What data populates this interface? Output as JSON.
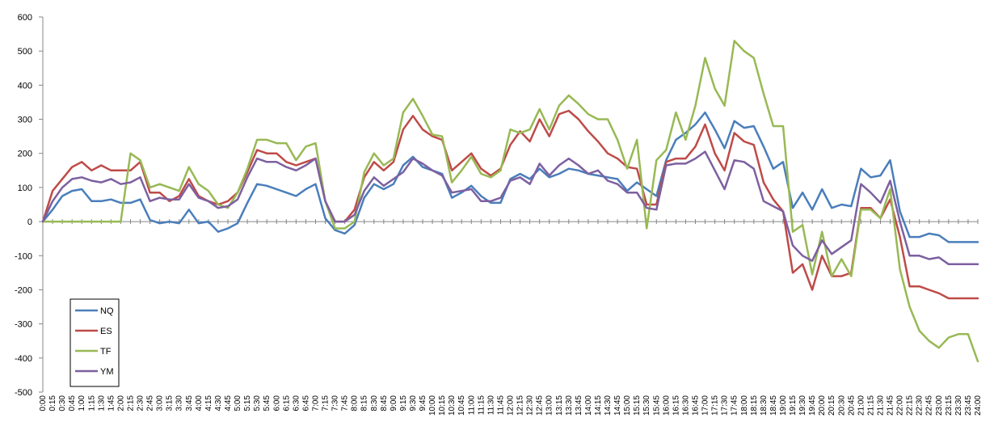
{
  "chart_data": {
    "type": "line",
    "title": "",
    "xlabel": "",
    "ylabel": "",
    "ylim": [
      -500,
      600
    ],
    "yticks": [
      -500,
      -400,
      -300,
      -200,
      -100,
      0,
      100,
      200,
      300,
      400,
      500,
      600
    ],
    "grid": false,
    "legend_position": "bottom-left",
    "x": [
      "0:00",
      "0:15",
      "0:30",
      "0:45",
      "1:00",
      "1:15",
      "1:30",
      "1:45",
      "2:00",
      "2:15",
      "2:30",
      "2:45",
      "3:00",
      "3:15",
      "3:30",
      "3:45",
      "4:00",
      "4:15",
      "4:30",
      "4:45",
      "5:00",
      "5:15",
      "5:30",
      "5:45",
      "6:00",
      "6:15",
      "6:30",
      "6:45",
      "7:00",
      "7:15",
      "7:30",
      "7:45",
      "8:00",
      "8:15",
      "8:30",
      "8:45",
      "9:00",
      "9:15",
      "9:30",
      "9:45",
      "10:00",
      "10:15",
      "10:30",
      "10:45",
      "11:00",
      "11:15",
      "11:30",
      "11:45",
      "12:00",
      "12:15",
      "12:30",
      "12:45",
      "13:00",
      "13:15",
      "13:30",
      "13:45",
      "14:00",
      "14:15",
      "14:30",
      "14:45",
      "15:00",
      "15:15",
      "15:30",
      "15:45",
      "16:00",
      "16:15",
      "16:30",
      "16:45",
      "17:00",
      "17:15",
      "17:30",
      "17:45",
      "18:00",
      "18:15",
      "18:30",
      "18:45",
      "19:00",
      "19:15",
      "19:30",
      "19:45",
      "20:00",
      "20:15",
      "20:30",
      "20:45",
      "21:00",
      "21:15",
      "21:30",
      "21:45",
      "22:00",
      "22:15",
      "22:30",
      "22:45",
      "23:00",
      "23:15",
      "23:30",
      "23:45",
      "24:00"
    ],
    "series": [
      {
        "name": "NQ",
        "color": "#4a7ebb",
        "values": [
          0,
          35,
          75,
          90,
          95,
          60,
          60,
          65,
          55,
          55,
          65,
          5,
          -5,
          0,
          -5,
          35,
          -5,
          0,
          -30,
          -20,
          -5,
          55,
          110,
          105,
          95,
          85,
          75,
          95,
          110,
          10,
          -25,
          -35,
          -10,
          70,
          110,
          95,
          110,
          165,
          190,
          160,
          150,
          140,
          70,
          85,
          105,
          75,
          55,
          55,
          125,
          140,
          125,
          155,
          130,
          140,
          155,
          150,
          140,
          135,
          130,
          125,
          90,
          115,
          95,
          75,
          180,
          240,
          260,
          285,
          320,
          270,
          215,
          295,
          275,
          280,
          220,
          155,
          175,
          40,
          85,
          35,
          95,
          40,
          50,
          45,
          155,
          130,
          135,
          180,
          30,
          -45,
          -45,
          -35,
          -40,
          -60,
          -60,
          -60,
          -60
        ]
      },
      {
        "name": "ES",
        "color": "#be4b48",
        "values": [
          0,
          90,
          125,
          160,
          175,
          150,
          165,
          150,
          150,
          150,
          175,
          85,
          85,
          60,
          75,
          125,
          75,
          60,
          50,
          60,
          85,
          145,
          210,
          200,
          200,
          175,
          165,
          175,
          185,
          60,
          0,
          0,
          35,
          130,
          175,
          150,
          175,
          270,
          310,
          270,
          250,
          240,
          150,
          175,
          200,
          155,
          135,
          155,
          225,
          265,
          235,
          300,
          250,
          315,
          325,
          300,
          265,
          235,
          200,
          185,
          160,
          155,
          50,
          50,
          175,
          185,
          185,
          220,
          285,
          200,
          150,
          260,
          235,
          225,
          115,
          65,
          30,
          -150,
          -125,
          -200,
          -100,
          -160,
          -160,
          -150,
          40,
          40,
          10,
          65,
          -45,
          -190,
          -190,
          -200,
          -210,
          -225,
          -225,
          -225,
          -225
        ]
      },
      {
        "name": "TF",
        "color": "#98b954",
        "values": [
          0,
          0,
          0,
          0,
          0,
          0,
          0,
          0,
          0,
          200,
          180,
          100,
          110,
          100,
          90,
          160,
          110,
          90,
          50,
          40,
          85,
          155,
          240,
          240,
          230,
          230,
          180,
          220,
          230,
          60,
          -20,
          -20,
          0,
          145,
          200,
          165,
          185,
          320,
          360,
          310,
          255,
          250,
          115,
          150,
          190,
          140,
          130,
          150,
          270,
          260,
          270,
          330,
          270,
          340,
          370,
          345,
          315,
          300,
          300,
          240,
          155,
          240,
          -20,
          180,
          210,
          320,
          240,
          340,
          480,
          390,
          340,
          530,
          500,
          480,
          375,
          280,
          280,
          -30,
          -10,
          -155,
          -30,
          -160,
          -110,
          -160,
          35,
          35,
          10,
          95,
          -140,
          -250,
          -320,
          -350,
          -370,
          -340,
          -330,
          -330,
          -410
        ]
      },
      {
        "name": "YM",
        "color": "#7d60a0",
        "values": [
          0,
          60,
          100,
          125,
          130,
          120,
          115,
          125,
          110,
          115,
          130,
          60,
          70,
          65,
          65,
          110,
          70,
          60,
          40,
          45,
          65,
          130,
          185,
          175,
          175,
          160,
          150,
          165,
          185,
          60,
          0,
          0,
          20,
          90,
          130,
          105,
          125,
          145,
          185,
          170,
          150,
          135,
          85,
          90,
          95,
          60,
          60,
          70,
          120,
          130,
          110,
          170,
          135,
          165,
          185,
          165,
          140,
          150,
          120,
          110,
          85,
          85,
          40,
          35,
          165,
          170,
          170,
          185,
          205,
          150,
          95,
          180,
          175,
          155,
          60,
          45,
          30,
          -70,
          -100,
          -115,
          -55,
          -95,
          -75,
          -55,
          110,
          85,
          55,
          120,
          0,
          -100,
          -100,
          -110,
          -105,
          -125,
          -125,
          -125,
          -125
        ]
      }
    ]
  }
}
